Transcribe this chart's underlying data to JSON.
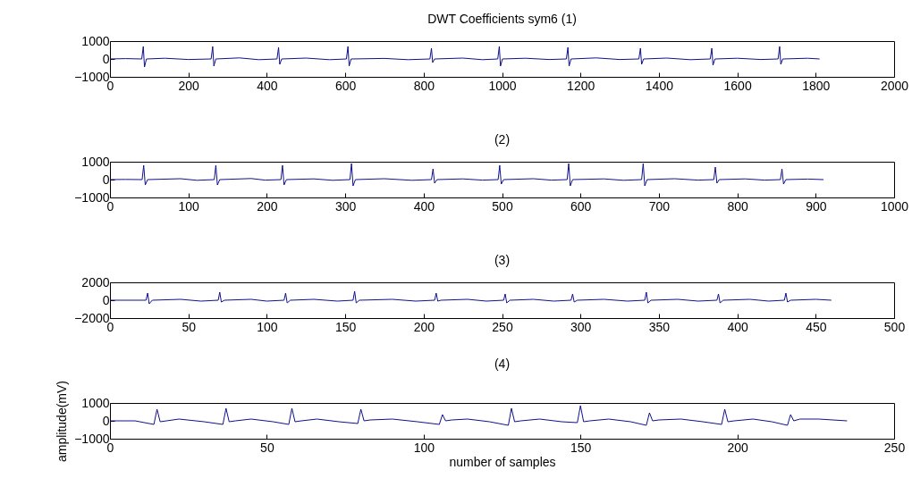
{
  "chart_data": [
    {
      "type": "line",
      "title": "DWT Coefficients sym6 (1)",
      "xlim": [
        0,
        2000
      ],
      "xticks": [
        0,
        200,
        400,
        600,
        800,
        1000,
        1200,
        1400,
        1600,
        1800,
        2000
      ],
      "ylim": [
        -1000,
        1000
      ],
      "yticks": [
        -1000,
        0,
        1000
      ],
      "grid": false,
      "series": [
        {
          "color": "#10108c",
          "x": [
            0,
            40,
            81,
            85,
            88,
            93,
            140,
            200,
            258,
            262,
            265,
            270,
            330,
            380,
            426,
            430,
            433,
            438,
            500,
            560,
            603,
            607,
            610,
            615,
            700,
            760,
            816,
            820,
            823,
            828,
            900,
            950,
            989,
            993,
            996,
            1001,
            1060,
            1120,
            1164,
            1168,
            1171,
            1176,
            1240,
            1300,
            1349,
            1353,
            1356,
            1361,
            1420,
            1480,
            1531,
            1535,
            1538,
            1543,
            1600,
            1660,
            1704,
            1708,
            1711,
            1716,
            1780,
            1810
          ],
          "values": [
            0,
            20,
            0,
            700,
            -450,
            0,
            40,
            -30,
            0,
            700,
            -400,
            0,
            60,
            -40,
            0,
            650,
            -300,
            0,
            50,
            -40,
            0,
            700,
            -400,
            0,
            30,
            -40,
            0,
            600,
            -200,
            0,
            50,
            -40,
            0,
            700,
            -400,
            0,
            40,
            -30,
            0,
            650,
            -400,
            0,
            60,
            -30,
            0,
            600,
            -300,
            0,
            50,
            -40,
            0,
            600,
            -350,
            0,
            40,
            -30,
            0,
            700,
            -300,
            0,
            40,
            0
          ]
        }
      ]
    },
    {
      "type": "line",
      "title": "(2)",
      "xlim": [
        0,
        1000
      ],
      "xticks": [
        0,
        100,
        200,
        300,
        400,
        500,
        600,
        700,
        800,
        900,
        1000
      ],
      "ylim": [
        -1000,
        1000
      ],
      "yticks": [
        -1000,
        0,
        1000
      ],
      "grid": false,
      "series": [
        {
          "color": "#10108c",
          "x": [
            0,
            20,
            41,
            43,
            45,
            48,
            90,
            111,
            133,
            135,
            137,
            140,
            180,
            198,
            218,
            220,
            222,
            225,
            260,
            284,
            306,
            308,
            310,
            313,
            350,
            385,
            410,
            412,
            414,
            417,
            450,
            475,
            495,
            497,
            499,
            502,
            540,
            563,
            583,
            585,
            587,
            590,
            630,
            655,
            678,
            680,
            682,
            685,
            720,
            750,
            770,
            772,
            774,
            777,
            810,
            835,
            855,
            857,
            859,
            862,
            890,
            910
          ],
          "values": [
            0,
            10,
            0,
            800,
            -300,
            0,
            50,
            -40,
            0,
            800,
            -300,
            0,
            60,
            -30,
            0,
            800,
            -300,
            0,
            40,
            -40,
            0,
            900,
            -350,
            0,
            50,
            -40,
            0,
            600,
            -200,
            0,
            40,
            -30,
            0,
            800,
            -250,
            0,
            50,
            -30,
            0,
            900,
            -350,
            0,
            40,
            -40,
            0,
            900,
            -350,
            0,
            50,
            -30,
            0,
            700,
            -200,
            0,
            40,
            -30,
            0,
            600,
            -250,
            0,
            30,
            0
          ]
        }
      ]
    },
    {
      "type": "line",
      "title": "(3)",
      "xlim": [
        0,
        500
      ],
      "xticks": [
        0,
        50,
        100,
        150,
        200,
        250,
        300,
        350,
        400,
        450,
        500
      ],
      "ylim": [
        -2000,
        2000
      ],
      "yticks": [
        -2000,
        0,
        2000
      ],
      "grid": false,
      "series": [
        {
          "color": "#10108c",
          "x": [
            0,
            12,
            23,
            24,
            25,
            27,
            45,
            58,
            69,
            70,
            71,
            73,
            90,
            100,
            111,
            112,
            113,
            115,
            130,
            145,
            155,
            156,
            157,
            159,
            180,
            195,
            207,
            208,
            209,
            211,
            228,
            240,
            251,
            252,
            253,
            255,
            270,
            283,
            294,
            295,
            296,
            298,
            315,
            330,
            341,
            342,
            343,
            345,
            362,
            375,
            387,
            388,
            389,
            391,
            408,
            420,
            430,
            431,
            432,
            434,
            450,
            460
          ],
          "values": [
            0,
            0,
            0,
            800,
            -400,
            0,
            100,
            -100,
            0,
            900,
            -200,
            0,
            100,
            -100,
            0,
            800,
            -300,
            0,
            100,
            -100,
            0,
            1000,
            -300,
            0,
            100,
            -100,
            0,
            800,
            -100,
            0,
            100,
            -100,
            0,
            700,
            -300,
            0,
            100,
            -100,
            0,
            700,
            -200,
            0,
            100,
            -100,
            0,
            900,
            -300,
            0,
            100,
            -100,
            0,
            700,
            -300,
            0,
            100,
            -100,
            0,
            800,
            -200,
            0,
            100,
            0
          ]
        }
      ]
    },
    {
      "type": "line",
      "title": "(4)",
      "xlabel": "number of samples",
      "ylabel": "amplitude(mV)",
      "xlim": [
        0,
        250
      ],
      "xticks": [
        0,
        50,
        100,
        150,
        200,
        250
      ],
      "ylim": [
        -1000,
        1000
      ],
      "yticks": [
        -1000,
        0,
        1000
      ],
      "grid": false,
      "series": [
        {
          "color": "#10108c",
          "x": [
            0,
            8,
            14,
            15,
            16,
            18,
            22,
            30,
            36,
            37,
            38,
            40,
            45,
            52,
            57,
            58,
            59,
            61,
            66,
            73,
            79,
            80,
            81,
            83,
            90,
            98,
            105,
            106,
            107,
            109,
            114,
            121,
            127,
            128,
            129,
            131,
            137,
            144,
            149,
            150,
            151,
            153,
            159,
            166,
            171,
            172,
            173,
            175,
            182,
            189,
            195,
            196,
            197,
            199,
            205,
            211,
            216,
            217,
            218,
            220,
            226,
            235
          ],
          "values": [
            0,
            0,
            -200,
            650,
            -50,
            0,
            100,
            -50,
            -200,
            700,
            -50,
            0,
            100,
            -50,
            -200,
            700,
            -50,
            0,
            100,
            -50,
            -150,
            650,
            0,
            50,
            100,
            -50,
            -200,
            350,
            0,
            50,
            100,
            -50,
            -250,
            700,
            -50,
            0,
            100,
            -50,
            -100,
            850,
            -50,
            0,
            100,
            -50,
            -250,
            450,
            0,
            50,
            100,
            -50,
            -200,
            650,
            -50,
            0,
            100,
            -50,
            -250,
            350,
            0,
            100,
            100,
            0
          ]
        }
      ]
    }
  ]
}
